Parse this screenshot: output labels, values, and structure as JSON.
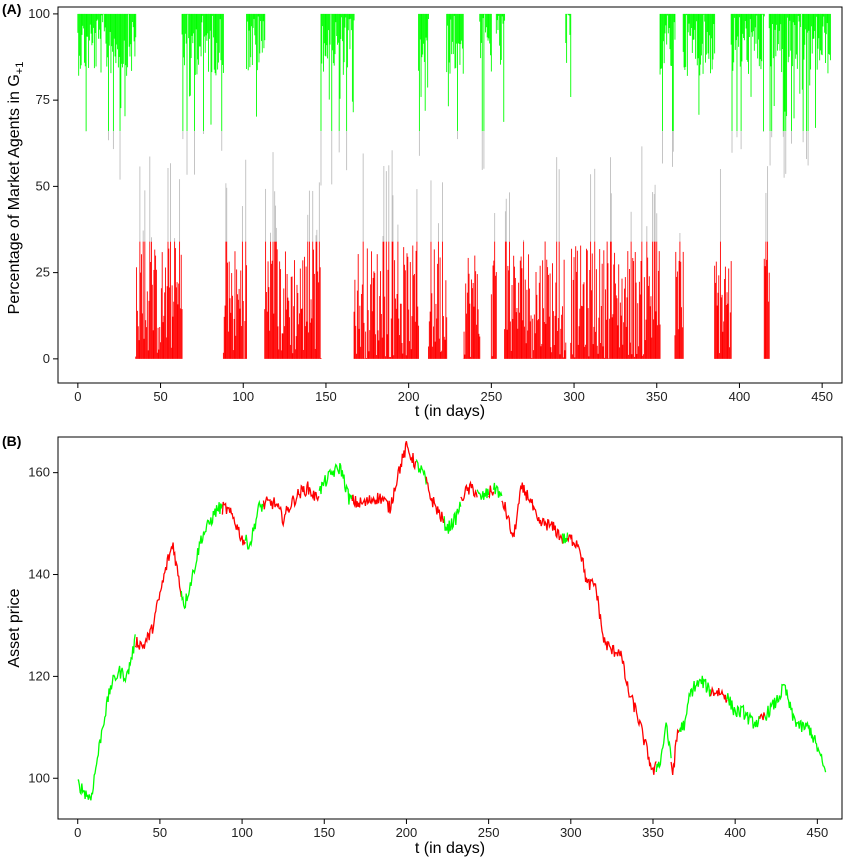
{
  "colors": {
    "green": "#00ff00",
    "red": "#ff0000",
    "gray": "#bebebe",
    "axis": "#000000"
  },
  "chart_data": [
    {
      "type": "line",
      "label": "(A)",
      "xlabel": "t (in days)",
      "ylabel_main": "Percentage of Market Agents in G",
      "ylabel_sub": "+1",
      "xlim": [
        -12,
        462
      ],
      "ylim": [
        -7,
        102
      ],
      "xticks": [
        0,
        50,
        100,
        150,
        200,
        250,
        300,
        350,
        400,
        450
      ],
      "yticks": [
        0,
        25,
        50,
        75,
        100
      ],
      "color_thresholds": {
        "green_above": 66,
        "red_below": 34
      },
      "green_segments": [
        [
          0,
          35
        ],
        [
          63,
          88
        ],
        [
          102,
          113
        ],
        [
          147,
          167
        ],
        [
          206,
          212
        ],
        [
          223,
          233
        ],
        [
          243,
          250
        ],
        [
          253,
          258
        ],
        [
          295,
          298
        ],
        [
          352,
          361
        ],
        [
          366,
          385
        ],
        [
          395,
          415
        ],
        [
          418,
          455
        ]
      ],
      "red_segments": [
        [
          35,
          63
        ],
        [
          88,
          102
        ],
        [
          113,
          147
        ],
        [
          167,
          206
        ],
        [
          212,
          223
        ],
        [
          233,
          243
        ],
        [
          250,
          253
        ],
        [
          258,
          295
        ],
        [
          298,
          352
        ],
        [
          361,
          366
        ],
        [
          385,
          395
        ],
        [
          415,
          418
        ]
      ]
    },
    {
      "type": "line",
      "label": "(B)",
      "xlabel": "t (in days)",
      "ylabel": "Asset price",
      "xlim": [
        -12,
        465
      ],
      "ylim": [
        92,
        167
      ],
      "xticks": [
        0,
        50,
        100,
        150,
        200,
        250,
        300,
        350,
        400,
        450
      ],
      "yticks": [
        100,
        120,
        140,
        160
      ],
      "series": [
        {
          "points": [
            [
              0,
              99
            ],
            [
              5,
              97
            ],
            [
              8,
              96
            ],
            [
              10,
              100
            ],
            [
              15,
              110
            ],
            [
              20,
              118
            ],
            [
              25,
              121
            ],
            [
              30,
              120
            ],
            [
              35,
              127
            ],
            [
              40,
              126
            ],
            [
              45,
              129
            ],
            [
              50,
              136
            ],
            [
              55,
              143
            ],
            [
              58,
              146
            ],
            [
              62,
              138
            ],
            [
              65,
              134
            ],
            [
              70,
              140
            ],
            [
              75,
              147
            ],
            [
              80,
              150
            ],
            [
              85,
              153
            ],
            [
              90,
              153
            ],
            [
              95,
              151
            ],
            [
              100,
              147
            ],
            [
              105,
              146
            ],
            [
              110,
              153
            ],
            [
              115,
              154
            ],
            [
              120,
              154
            ],
            [
              125,
              151
            ],
            [
              130,
              154
            ],
            [
              135,
              156
            ],
            [
              140,
              157
            ],
            [
              145,
              155
            ],
            [
              150,
              158
            ],
            [
              155,
              160
            ],
            [
              160,
              161
            ],
            [
              165,
              155
            ],
            [
              170,
              154
            ],
            [
              175,
              154
            ],
            [
              180,
              155
            ],
            [
              185,
              155
            ],
            [
              190,
              153
            ],
            [
              195,
              160
            ],
            [
              200,
              165
            ],
            [
              205,
              162
            ],
            [
              210,
              160
            ],
            [
              215,
              155
            ],
            [
              220,
              152
            ],
            [
              225,
              149
            ],
            [
              230,
              151
            ],
            [
              235,
              156
            ],
            [
              240,
              157
            ],
            [
              245,
              155
            ],
            [
              250,
              156
            ],
            [
              255,
              157
            ],
            [
              260,
              153
            ],
            [
              265,
              147
            ],
            [
              270,
              157
            ],
            [
              275,
              155
            ],
            [
              280,
              150
            ],
            [
              285,
              150
            ],
            [
              290,
              149
            ],
            [
              295,
              147
            ],
            [
              300,
              147
            ],
            [
              305,
              146
            ],
            [
              310,
              138
            ],
            [
              315,
              138
            ],
            [
              320,
              127
            ],
            [
              325,
              125
            ],
            [
              330,
              125
            ],
            [
              335,
              117
            ],
            [
              340,
              113
            ],
            [
              345,
              107
            ],
            [
              350,
              101
            ],
            [
              355,
              104
            ],
            [
              358,
              111
            ],
            [
              362,
              101
            ],
            [
              365,
              109
            ],
            [
              370,
              111
            ],
            [
              372,
              116
            ],
            [
              375,
              118
            ],
            [
              380,
              119
            ],
            [
              385,
              117
            ],
            [
              390,
              117
            ],
            [
              395,
              116
            ],
            [
              400,
              113
            ],
            [
              405,
              113
            ],
            [
              410,
              111
            ],
            [
              415,
              111
            ],
            [
              420,
              113
            ],
            [
              425,
              115
            ],
            [
              430,
              118
            ],
            [
              435,
              112
            ],
            [
              440,
              110
            ],
            [
              445,
              110
            ],
            [
              450,
              106
            ],
            [
              455,
              101
            ]
          ],
          "color_segments": [
            {
              "from": 0,
              "to": 35,
              "color": "green"
            },
            {
              "from": 35,
              "to": 63,
              "color": "red"
            },
            {
              "from": 63,
              "to": 88,
              "color": "green"
            },
            {
              "from": 88,
              "to": 102,
              "color": "red"
            },
            {
              "from": 102,
              "to": 113,
              "color": "green"
            },
            {
              "from": 113,
              "to": 147,
              "color": "red"
            },
            {
              "from": 147,
              "to": 167,
              "color": "green"
            },
            {
              "from": 167,
              "to": 206,
              "color": "red"
            },
            {
              "from": 206,
              "to": 212,
              "color": "green"
            },
            {
              "from": 212,
              "to": 223,
              "color": "red"
            },
            {
              "from": 223,
              "to": 233,
              "color": "green"
            },
            {
              "from": 233,
              "to": 243,
              "color": "red"
            },
            {
              "from": 243,
              "to": 250,
              "color": "green"
            },
            {
              "from": 250,
              "to": 253,
              "color": "red"
            },
            {
              "from": 253,
              "to": 258,
              "color": "green"
            },
            {
              "from": 258,
              "to": 295,
              "color": "red"
            },
            {
              "from": 295,
              "to": 298,
              "color": "green"
            },
            {
              "from": 298,
              "to": 352,
              "color": "red"
            },
            {
              "from": 352,
              "to": 361,
              "color": "green"
            },
            {
              "from": 361,
              "to": 366,
              "color": "red"
            },
            {
              "from": 366,
              "to": 385,
              "color": "green"
            },
            {
              "from": 385,
              "to": 395,
              "color": "red"
            },
            {
              "from": 395,
              "to": 415,
              "color": "green"
            },
            {
              "from": 415,
              "to": 418,
              "color": "red"
            },
            {
              "from": 418,
              "to": 455,
              "color": "green"
            }
          ]
        }
      ]
    }
  ]
}
